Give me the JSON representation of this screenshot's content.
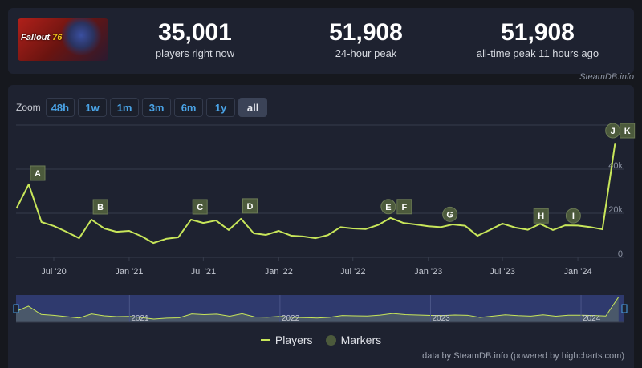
{
  "header": {
    "game_logo_text": "Fallout 76",
    "stats": [
      {
        "value": "35,001",
        "label": "players right now"
      },
      {
        "value": "51,908",
        "label": "24-hour peak"
      },
      {
        "value": "51,908",
        "label": "all-time peak 11 hours ago"
      }
    ],
    "credit": "SteamDB.info"
  },
  "zoom": {
    "label": "Zoom",
    "buttons": [
      {
        "label": "48h",
        "active": false
      },
      {
        "label": "1w",
        "active": false
      },
      {
        "label": "1m",
        "active": false
      },
      {
        "label": "3m",
        "active": false
      },
      {
        "label": "6m",
        "active": false
      },
      {
        "label": "1y",
        "active": false
      },
      {
        "label": "all",
        "active": true
      }
    ]
  },
  "colors": {
    "line": "#c8e65a",
    "marker": "#4c5a3c",
    "navigator": "#2f3a6e"
  },
  "chart_data": {
    "type": "line",
    "xlabel": "",
    "ylabel": "",
    "ylim": [
      0,
      60000
    ],
    "grid": true,
    "yticks": [
      {
        "v": 0,
        "label": "0"
      },
      {
        "v": 20000,
        "label": "20k"
      },
      {
        "v": 40000,
        "label": "40k"
      }
    ],
    "xticks": [
      {
        "date": "2020-07-01",
        "label": "Jul '20"
      },
      {
        "date": "2021-01-01",
        "label": "Jan '21"
      },
      {
        "date": "2021-07-01",
        "label": "Jul '21"
      },
      {
        "date": "2022-01-01",
        "label": "Jan '22"
      },
      {
        "date": "2022-07-01",
        "label": "Jul '22"
      },
      {
        "date": "2023-01-01",
        "label": "Jan '23"
      },
      {
        "date": "2023-07-01",
        "label": "Jul '23"
      },
      {
        "date": "2024-01-01",
        "label": "Jan '24"
      }
    ],
    "series": [
      {
        "name": "Players",
        "x": [
          "2020-04",
          "2020-05",
          "2020-06",
          "2020-07",
          "2020-08",
          "2020-09",
          "2020-10",
          "2020-11",
          "2020-12",
          "2021-01",
          "2021-02",
          "2021-03",
          "2021-04",
          "2021-05",
          "2021-06",
          "2021-07",
          "2021-08",
          "2021-09",
          "2021-10",
          "2021-11",
          "2021-12",
          "2022-01",
          "2022-02",
          "2022-03",
          "2022-04",
          "2022-05",
          "2022-06",
          "2022-07",
          "2022-08",
          "2022-09",
          "2022-10",
          "2022-11",
          "2022-12",
          "2023-01",
          "2023-02",
          "2023-03",
          "2023-04",
          "2023-05",
          "2023-06",
          "2023-07",
          "2023-08",
          "2023-09",
          "2023-10",
          "2023-11",
          "2023-12",
          "2024-01",
          "2024-02",
          "2024-03",
          "2024-04"
        ],
        "values": [
          22200,
          33100,
          16000,
          14200,
          11600,
          8700,
          17100,
          13100,
          11600,
          12000,
          9500,
          6500,
          8400,
          9100,
          17100,
          15600,
          16700,
          12400,
          17500,
          10900,
          10200,
          12000,
          9800,
          9500,
          8700,
          10100,
          13700,
          13100,
          12800,
          14700,
          17900,
          15600,
          14900,
          14100,
          13700,
          14900,
          14300,
          9800,
          12500,
          15300,
          13500,
          12500,
          15200,
          12400,
          14500,
          14400,
          13700,
          12700,
          51908
        ]
      }
    ],
    "markers": [
      {
        "label": "A",
        "date": "2020-05",
        "shape": "flag"
      },
      {
        "label": "B",
        "date": "2020-10",
        "shape": "flag"
      },
      {
        "label": "C",
        "date": "2021-06",
        "shape": "flag"
      },
      {
        "label": "D",
        "date": "2021-10",
        "shape": "flag"
      },
      {
        "label": "E",
        "date": "2022-10",
        "shape": "circle"
      },
      {
        "label": "F",
        "date": "2022-10",
        "shape": "flag"
      },
      {
        "label": "G",
        "date": "2023-02",
        "shape": "circle"
      },
      {
        "label": "H",
        "date": "2023-10",
        "shape": "flag"
      },
      {
        "label": "I",
        "date": "2023-12",
        "shape": "circle"
      },
      {
        "label": "J",
        "date": "2024-04",
        "shape": "circle"
      },
      {
        "label": "K",
        "date": "2024-04",
        "shape": "flag"
      }
    ],
    "navigator_labels": [
      "2021",
      "2022",
      "2023",
      "2024"
    ],
    "legend": {
      "position": "bottom",
      "items": [
        "Players",
        "Markers"
      ]
    }
  },
  "footer": {
    "credit": "data by SteamDB.info (powered by highcharts.com)"
  }
}
